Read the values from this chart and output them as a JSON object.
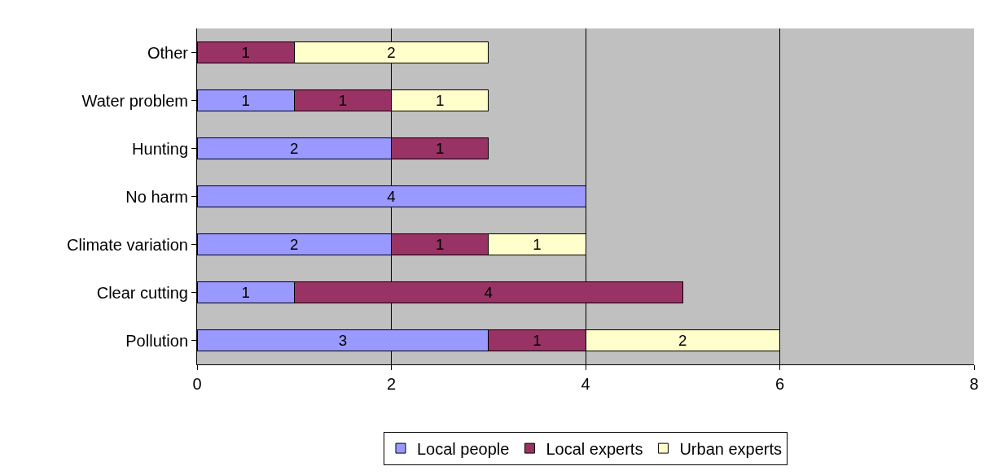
{
  "chart_data": {
    "type": "bar",
    "orientation": "horizontal",
    "stacked": true,
    "categories": [
      "Other",
      "Water problem",
      "Hunting",
      "No harm",
      "Climate variation",
      "Clear cutting",
      "Pollution"
    ],
    "series": [
      {
        "name": "Local people",
        "color": "#9999ff",
        "values": [
          null,
          1,
          2,
          4,
          2,
          1,
          3
        ]
      },
      {
        "name": "Local experts",
        "color": "#993366",
        "values": [
          1,
          1,
          1,
          null,
          1,
          4,
          1
        ]
      },
      {
        "name": "Urban experts",
        "color": "#ffffcc",
        "values": [
          2,
          1,
          null,
          null,
          1,
          null,
          2
        ]
      }
    ],
    "xlim": [
      0,
      8
    ],
    "xticks": [
      0,
      2,
      4,
      6,
      8
    ],
    "grid": "x",
    "legend": "bottom",
    "data_labels": true
  }
}
